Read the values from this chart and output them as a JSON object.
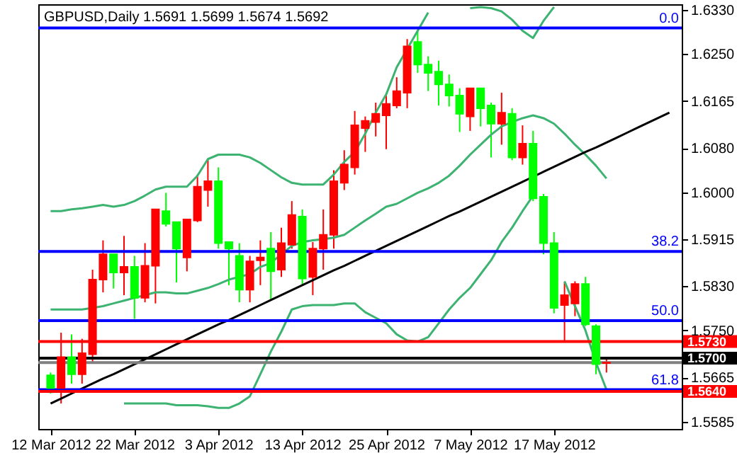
{
  "chart_data": {
    "type": "candlestick",
    "title": "GBPUSD,Daily  1.5691 1.5699 1.5674 1.5692",
    "categories": [
      "12 Mar 2012",
      null,
      null,
      null,
      null,
      null,
      null,
      null,
      "22 Mar 2012",
      null,
      null,
      null,
      null,
      null,
      null,
      null,
      "3 Apr 2012",
      null,
      null,
      null,
      null,
      null,
      null,
      null,
      "13 Apr 2012",
      null,
      null,
      null,
      null,
      null,
      null,
      null,
      "25 Apr 2012",
      null,
      null,
      null,
      null,
      null,
      null,
      null,
      "7 May 2012",
      null,
      null,
      null,
      null,
      null,
      null,
      null,
      "17 May 2012",
      null,
      null,
      null,
      null,
      null,
      null,
      null,
      null,
      null,
      null,
      null
    ],
    "ohlc": [
      [
        1.5669,
        1.5674,
        1.5636,
        1.5646
      ],
      [
        1.5646,
        1.5746,
        1.5618,
        1.5702
      ],
      [
        1.5702,
        1.5743,
        1.5654,
        1.5671
      ],
      [
        1.5671,
        1.5735,
        1.5654,
        1.5709
      ],
      [
        1.5707,
        1.586,
        1.5692,
        1.5842
      ],
      [
        1.5842,
        1.5913,
        1.5819,
        1.5888
      ],
      [
        1.5888,
        1.5888,
        1.5826,
        1.5855
      ],
      [
        1.5855,
        1.5921,
        1.5814,
        1.5865
      ],
      [
        1.5865,
        1.5885,
        1.5771,
        1.5809
      ],
      [
        1.5809,
        1.5908,
        1.5801,
        1.5867
      ],
      [
        1.5867,
        1.5969,
        1.5799,
        1.5969
      ],
      [
        1.5966,
        1.5999,
        1.5938,
        1.5943
      ],
      [
        1.5946,
        1.5946,
        1.5837,
        1.5898
      ],
      [
        1.5882,
        1.5951,
        1.5857,
        1.5951
      ],
      [
        1.5949,
        1.6032,
        1.5946,
        1.601
      ],
      [
        1.6004,
        1.606,
        1.5974,
        1.602
      ],
      [
        1.602,
        1.6045,
        1.5898,
        1.5908
      ],
      [
        1.591,
        1.591,
        1.5832,
        1.5898
      ],
      [
        1.5885,
        1.5908,
        1.5801,
        1.5824
      ],
      [
        1.5824,
        1.5885,
        1.5801,
        1.5875
      ],
      [
        1.5877,
        1.5913,
        1.5832,
        1.5882
      ],
      [
        1.5898,
        1.5928,
        1.5806,
        1.5857
      ],
      [
        1.586,
        1.5936,
        1.5847,
        1.5908
      ],
      [
        1.5905,
        1.5984,
        1.5898,
        1.5959
      ],
      [
        1.5956,
        1.5969,
        1.5834,
        1.5844
      ],
      [
        1.5847,
        1.591,
        1.5814,
        1.5898
      ],
      [
        1.5898,
        1.5969,
        1.586,
        1.5923
      ],
      [
        1.5923,
        1.604,
        1.5898,
        1.602
      ],
      [
        1.6017,
        1.6076,
        1.6004,
        1.605
      ],
      [
        1.6045,
        1.6147,
        1.6032,
        1.6121
      ],
      [
        1.6116,
        1.6137,
        1.6073,
        1.6129
      ],
      [
        1.6127,
        1.6162,
        1.6101,
        1.6142
      ],
      [
        1.6139,
        1.6175,
        1.6078,
        1.616
      ],
      [
        1.6157,
        1.6208,
        1.6152,
        1.6183
      ],
      [
        1.618,
        1.6277,
        1.6152,
        1.6264
      ],
      [
        1.6272,
        1.6294,
        1.6216,
        1.6231
      ],
      [
        1.6231,
        1.6246,
        1.6183,
        1.6216
      ],
      [
        1.6218,
        1.6238,
        1.6157,
        1.6195
      ],
      [
        1.6195,
        1.6213,
        1.6155,
        1.6175
      ],
      [
        1.6175,
        1.6188,
        1.6109,
        1.6142
      ],
      [
        1.6137,
        1.6188,
        1.6111,
        1.6188
      ],
      [
        1.6188,
        1.6188,
        1.6119,
        1.6152
      ],
      [
        1.6157,
        1.6162,
        1.6063,
        1.6124
      ],
      [
        1.6124,
        1.618,
        1.6086,
        1.6144
      ],
      [
        1.6142,
        1.6152,
        1.6058,
        1.6063
      ],
      [
        1.6063,
        1.6121,
        1.605,
        1.6088
      ],
      [
        1.6088,
        1.6111,
        1.5984,
        1.5989
      ],
      [
        1.5992,
        1.5997,
        1.5888,
        1.5908
      ],
      [
        1.5908,
        1.5928,
        1.5781,
        1.5791
      ],
      [
        1.5796,
        1.5837,
        1.5732,
        1.5814
      ],
      [
        1.5799,
        1.5839,
        1.5776,
        1.5834
      ],
      [
        1.5834,
        1.5847,
        1.5758,
        1.5761
      ],
      [
        1.5758,
        1.5761,
        1.5671,
        1.5689
      ],
      [
        1.5691,
        1.5699,
        1.5674,
        1.5692
      ],
      null,
      null,
      null,
      null,
      null,
      null
    ],
    "colors": [
      "#00ff00",
      "#ff0000",
      "#00ff00",
      "#ff0000",
      "#ff0000",
      "#ff0000",
      "#00ff00",
      "#ff0000",
      "#00ff00",
      "#ff0000",
      "#ff0000",
      "#00ff00",
      "#00ff00",
      "#ff0000",
      "#ff0000",
      "#ff0000",
      "#00ff00",
      "#00ff00",
      "#00ff00",
      "#ff0000",
      "#ff0000",
      "#00ff00",
      "#ff0000",
      "#ff0000",
      "#00ff00",
      "#ff0000",
      "#ff0000",
      "#ff0000",
      "#ff0000",
      "#ff0000",
      "#ff0000",
      "#ff0000",
      "#ff0000",
      "#ff0000",
      "#ff0000",
      "#00ff00",
      "#00ff00",
      "#00ff00",
      "#00ff00",
      "#00ff00",
      "#ff0000",
      "#00ff00",
      "#00ff00",
      "#ff0000",
      "#00ff00",
      "#ff0000",
      "#00ff00",
      "#00ff00",
      "#00ff00",
      "#ff0000",
      "#ff0000",
      "#00ff00",
      "#00ff00",
      "#ff0000",
      null,
      null,
      null,
      null,
      null,
      null
    ],
    "series": [
      {
        "type": "line",
        "color": "#3cb371",
        "values": [
          1.5966,
          1.5966,
          1.5969,
          1.5971,
          1.5974,
          1.5977,
          1.5974,
          1.5977,
          1.5984,
          1.5994,
          1.6005,
          1.601,
          1.601,
          1.601,
          1.603,
          1.606,
          1.6068,
          1.6068,
          1.6068,
          1.6063,
          1.6053,
          1.604,
          1.6027,
          1.6017,
          1.6014,
          1.6014,
          1.6014,
          1.6032,
          1.6055,
          1.6073,
          1.6106,
          1.6144,
          1.6177,
          1.6226,
          1.6259,
          1.6292,
          1.6325,
          null,
          null,
          null,
          1.6333,
          1.6335,
          1.6333,
          1.6327,
          1.6312,
          1.6292,
          1.6279,
          1.631,
          1.6335,
          null,
          null,
          null,
          null,
          null,
          null,
          null,
          null,
          null,
          null,
          null
        ]
      },
      {
        "type": "line",
        "color": "#3cb371",
        "values": [
          1.5788,
          1.5788,
          1.5788,
          1.5788,
          1.5791,
          1.5794,
          1.5799,
          1.5804,
          1.5809,
          1.5814,
          1.5819,
          1.5819,
          1.5817,
          1.5817,
          1.5822,
          1.5827,
          1.5834,
          1.5842,
          1.5847,
          1.5852,
          1.5865,
          1.5872,
          1.5888,
          1.5903,
          1.591,
          1.5913,
          1.5915,
          1.5918,
          1.5923,
          1.5936,
          1.5949,
          1.5961,
          1.5974,
          1.5979,
          1.5989,
          1.5999,
          1.6007,
          1.6017,
          1.603,
          1.6048,
          1.6068,
          1.6086,
          1.6104,
          1.6119,
          1.6127,
          1.6134,
          1.6139,
          1.6134,
          1.6124,
          1.6106,
          1.6086,
          1.6068,
          1.6048,
          1.6025,
          null,
          null,
          null,
          null,
          null,
          null
        ]
      },
      {
        "type": "line",
        "color": "#3cb371",
        "values": [
          null,
          null,
          null,
          null,
          null,
          null,
          null,
          1.5618,
          1.5618,
          1.5618,
          1.5618,
          1.5618,
          1.5615,
          1.5615,
          1.5615,
          1.5613,
          1.561,
          1.561,
          1.5618,
          1.5631,
          1.5671,
          1.5712,
          1.5748,
          1.5788,
          1.5794,
          1.5796,
          1.5796,
          1.5796,
          1.5799,
          1.5799,
          1.5783,
          1.5773,
          1.5763,
          1.5743,
          1.5732,
          1.573,
          1.5738,
          1.5763,
          1.5788,
          1.5809,
          1.5827,
          1.5852,
          1.5877,
          1.591,
          1.5936,
          1.5966,
          1.5994,
          null,
          null,
          1.5839,
          1.5794,
          1.575,
          1.5692,
          1.5643,
          null,
          null,
          null,
          null,
          null,
          null
        ]
      },
      {
        "type": "line",
        "color": "#000000",
        "values": [
          1.5618,
          1.5627,
          1.5636,
          1.5645,
          1.5654,
          1.5663,
          1.5671,
          1.568,
          1.5689,
          1.5698,
          1.5707,
          1.5716,
          1.5725,
          1.5734,
          1.5743,
          1.5752,
          1.5761,
          1.5769,
          1.5778,
          1.5787,
          1.5796,
          1.5805,
          1.5814,
          1.5823,
          1.5832,
          1.5841,
          1.585,
          1.5859,
          1.5867,
          1.5876,
          1.5885,
          1.5894,
          1.5903,
          1.5912,
          1.5921,
          1.593,
          1.5939,
          1.5948,
          1.5957,
          1.5965,
          1.5974,
          1.5983,
          1.5992,
          1.6001,
          1.601,
          1.6019,
          1.6028,
          1.6037,
          1.6046,
          1.6055,
          1.6064,
          1.6073,
          1.6081,
          1.609,
          1.6099,
          1.6108,
          1.6117,
          1.6126,
          1.6135,
          1.6144
        ]
      }
    ],
    "ylim": [
      1.5572,
      1.634
    ],
    "yticks": [
      {
        "value": 1.5585,
        "label": "1.5585"
      },
      1.5665,
      {
        "value": 1.575,
        "label": "1.5750"
      },
      {
        "value": 1.583,
        "label": "1.5830"
      },
      1.5915,
      {
        "value": 1.6,
        "label": "1.6000"
      },
      {
        "value": 1.608,
        "label": "1.6080"
      },
      1.6165,
      {
        "value": 1.625,
        "label": "1.6250"
      },
      {
        "value": 1.633,
        "label": "1.6330"
      }
    ],
    "ref_lines": [
      {
        "axis": "y",
        "value": 1.6297,
        "color": "#0000ff"
      },
      {
        "axis": "y",
        "value": 1.5893,
        "color": "#0000ff"
      },
      {
        "axis": "y",
        "value": 1.5768,
        "color": "#0000ff"
      },
      {
        "axis": "y",
        "value": 1.5643,
        "color": "#0000ff"
      },
      {
        "axis": "y",
        "value": 1.5692,
        "color": "#808080"
      },
      {
        "axis": "y",
        "value": 1.573,
        "label": "1.5730",
        "color": "#ff0000"
      },
      {
        "axis": "y",
        "value": 1.57,
        "label": "1.5700",
        "color": "#000000"
      },
      {
        "axis": "y",
        "value": 1.564,
        "label": "1.5640",
        "color": "#ff0000"
      }
    ],
    "annotations": [
      {
        "text": "0.0",
        "y": 1.6297
      },
      {
        "text": "38.2",
        "y": 1.5893
      },
      {
        "text": "50.0",
        "y": 1.5768
      },
      {
        "text": "61.8",
        "y": 1.5643
      }
    ]
  }
}
